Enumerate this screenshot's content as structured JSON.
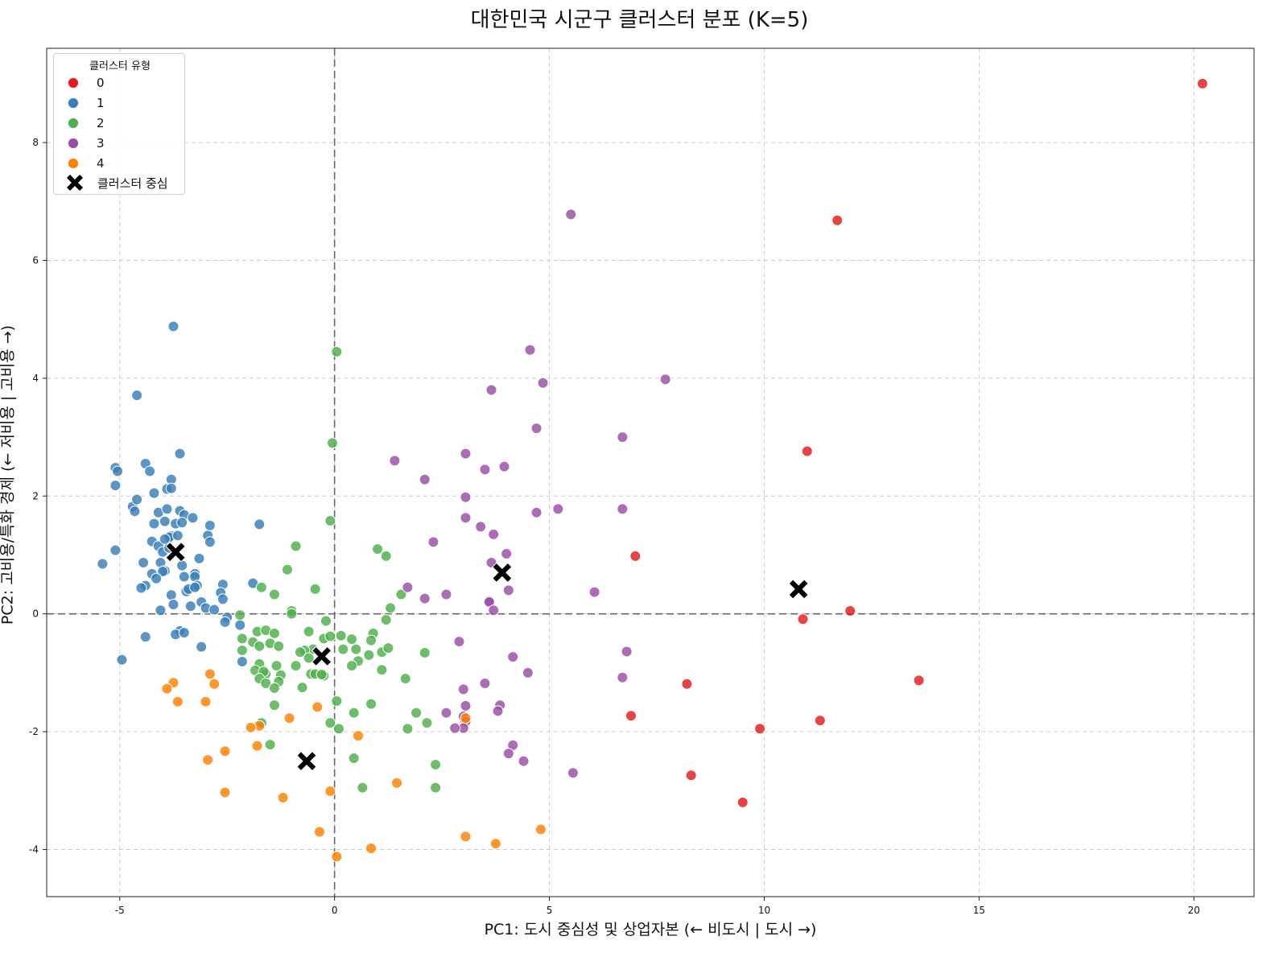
{
  "chart_data": {
    "type": "scatter",
    "title": "대한민국 시군구 클러스터 분포 (K=5)",
    "xlabel": "PC1: 도시 중심성 및 상업자본 (← 비도시 | 도시 →)",
    "ylabel": "PC2: 고비용/특화 경제 (← 저비용 | 고비용 →)",
    "xlim": [
      -6.7,
      21.4
    ],
    "ylim": [
      -4.8,
      9.6
    ],
    "xticks": [
      -5,
      0,
      5,
      10,
      15,
      20
    ],
    "yticks": [
      -4,
      -2,
      0,
      2,
      4,
      6,
      8
    ],
    "grid": true,
    "reference_lines": {
      "x": 0,
      "y": 0
    },
    "legend": {
      "title": "클러스터 유형",
      "position": "top-left",
      "centroid_label": "클러스터 중심"
    },
    "colors": {
      "0": "#e41a1c",
      "1": "#377eb8",
      "2": "#4daf4a",
      "3": "#984ea3",
      "4": "#ff7f00"
    },
    "series": [
      {
        "name": "0",
        "points": [
          [
            20.2,
            9.0
          ],
          [
            11.7,
            6.68
          ],
          [
            11.0,
            2.76
          ],
          [
            7.0,
            0.98
          ],
          [
            12.0,
            0.05
          ],
          [
            10.9,
            -0.09
          ],
          [
            13.6,
            -1.13
          ],
          [
            8.2,
            -1.19
          ],
          [
            6.9,
            -1.73
          ],
          [
            11.3,
            -1.81
          ],
          [
            9.9,
            -1.95
          ],
          [
            8.3,
            -2.74
          ],
          [
            9.5,
            -3.2
          ]
        ]
      },
      {
        "name": "1",
        "points": [
          [
            -3.75,
            4.88
          ],
          [
            -4.6,
            3.71
          ],
          [
            -3.6,
            2.72
          ],
          [
            -5.1,
            2.48
          ],
          [
            -5.05,
            2.42
          ],
          [
            -5.1,
            2.18
          ],
          [
            -4.4,
            2.55
          ],
          [
            -4.3,
            2.42
          ],
          [
            -4.2,
            2.05
          ],
          [
            -3.8,
            2.28
          ],
          [
            -3.9,
            2.12
          ],
          [
            -3.8,
            2.13
          ],
          [
            -4.7,
            1.82
          ],
          [
            -4.6,
            1.94
          ],
          [
            -4.65,
            1.74
          ],
          [
            -4.1,
            1.72
          ],
          [
            -3.9,
            1.78
          ],
          [
            -3.95,
            1.57
          ],
          [
            -3.7,
            1.53
          ],
          [
            -3.6,
            1.75
          ],
          [
            -3.5,
            1.68
          ],
          [
            -3.3,
            1.63
          ],
          [
            -3.55,
            1.55
          ],
          [
            -4.2,
            1.53
          ],
          [
            -2.9,
            1.5
          ],
          [
            -1.75,
            1.52
          ],
          [
            -2.95,
            1.33
          ],
          [
            -2.9,
            1.22
          ],
          [
            -3.8,
            1.32
          ],
          [
            -3.85,
            1.3
          ],
          [
            -3.65,
            1.33
          ],
          [
            -4.25,
            1.23
          ],
          [
            -4.1,
            1.15
          ],
          [
            -4.0,
            1.05
          ],
          [
            -3.85,
            1.12
          ],
          [
            -3.95,
            1.27
          ],
          [
            -5.1,
            1.08
          ],
          [
            -4.45,
            0.87
          ],
          [
            -4.05,
            0.87
          ],
          [
            -3.15,
            0.94
          ],
          [
            -5.4,
            0.85
          ],
          [
            -3.55,
            0.82
          ],
          [
            -4.25,
            0.68
          ],
          [
            -3.95,
            0.73
          ],
          [
            -4.0,
            0.72
          ],
          [
            -4.15,
            0.6
          ],
          [
            -3.25,
            0.68
          ],
          [
            -3.25,
            0.63
          ],
          [
            -3.5,
            0.63
          ],
          [
            -3.2,
            0.48
          ],
          [
            -4.4,
            0.48
          ],
          [
            -4.5,
            0.44
          ],
          [
            -3.45,
            0.38
          ],
          [
            -3.4,
            0.42
          ],
          [
            -3.25,
            0.45
          ],
          [
            -2.6,
            0.5
          ],
          [
            -1.9,
            0.52
          ],
          [
            -2.65,
            0.36
          ],
          [
            -3.8,
            0.32
          ],
          [
            -2.6,
            0.25
          ],
          [
            -3.1,
            0.2
          ],
          [
            -3.75,
            0.16
          ],
          [
            -3.35,
            0.13
          ],
          [
            -3.0,
            0.1
          ],
          [
            -4.05,
            0.06
          ],
          [
            -2.8,
            0.07
          ],
          [
            -2.5,
            -0.06
          ],
          [
            -2.55,
            -0.14
          ],
          [
            -2.2,
            -0.19
          ],
          [
            -3.6,
            -0.29
          ],
          [
            -3.7,
            -0.35
          ],
          [
            -3.5,
            -0.32
          ],
          [
            -4.4,
            -0.39
          ],
          [
            -3.1,
            -0.56
          ],
          [
            -4.95,
            -0.78
          ],
          [
            -2.15,
            -0.81
          ]
        ]
      },
      {
        "name": "2",
        "points": [
          [
            0.05,
            4.45
          ],
          [
            -0.05,
            2.9
          ],
          [
            -0.1,
            1.58
          ],
          [
            1.0,
            1.1
          ],
          [
            -0.9,
            1.15
          ],
          [
            1.2,
            0.98
          ],
          [
            -1.1,
            0.75
          ],
          [
            -0.45,
            0.42
          ],
          [
            -1.7,
            0.45
          ],
          [
            -1.4,
            0.33
          ],
          [
            1.55,
            0.33
          ],
          [
            1.3,
            0.1
          ],
          [
            -1.0,
            0.05
          ],
          [
            -1.0,
            0.0
          ],
          [
            -2.2,
            -0.02
          ],
          [
            1.2,
            -0.1
          ],
          [
            -0.2,
            -0.12
          ],
          [
            -1.8,
            -0.3
          ],
          [
            -1.6,
            -0.28
          ],
          [
            -1.4,
            -0.33
          ],
          [
            0.15,
            -0.37
          ],
          [
            0.4,
            -0.43
          ],
          [
            0.9,
            -0.33
          ],
          [
            0.85,
            -0.45
          ],
          [
            -0.6,
            -0.3
          ],
          [
            -0.25,
            -0.42
          ],
          [
            -0.1,
            -0.38
          ],
          [
            -2.15,
            -0.42
          ],
          [
            -1.9,
            -0.48
          ],
          [
            -1.5,
            -0.5
          ],
          [
            -1.75,
            -0.55
          ],
          [
            -1.3,
            -0.55
          ],
          [
            -0.5,
            -0.6
          ],
          [
            -0.7,
            -0.62
          ],
          [
            0.2,
            -0.6
          ],
          [
            0.5,
            -0.6
          ],
          [
            0.8,
            -0.7
          ],
          [
            1.1,
            -0.65
          ],
          [
            1.25,
            -0.58
          ],
          [
            2.1,
            -0.66
          ],
          [
            -2.15,
            -0.62
          ],
          [
            -0.8,
            -0.65
          ],
          [
            -0.6,
            -0.75
          ],
          [
            0.55,
            -0.8
          ],
          [
            -1.75,
            -0.85
          ],
          [
            -1.35,
            -0.88
          ],
          [
            -0.9,
            -0.88
          ],
          [
            -0.55,
            -1.02
          ],
          [
            -0.25,
            -1.05
          ],
          [
            0.4,
            -0.88
          ],
          [
            1.1,
            -0.95
          ],
          [
            -1.85,
            -0.96
          ],
          [
            -1.6,
            -1.02
          ],
          [
            -1.65,
            -0.98
          ],
          [
            -1.25,
            -1.04
          ],
          [
            -0.45,
            -1.02
          ],
          [
            -0.3,
            -1.03
          ],
          [
            -1.75,
            -1.1
          ],
          [
            -1.6,
            -1.18
          ],
          [
            -1.3,
            -1.15
          ],
          [
            -1.4,
            -1.26
          ],
          [
            -0.75,
            -1.25
          ],
          [
            1.65,
            -1.1
          ],
          [
            0.05,
            -1.48
          ],
          [
            -1.4,
            -1.55
          ],
          [
            0.85,
            -1.53
          ],
          [
            0.45,
            -1.68
          ],
          [
            1.9,
            -1.68
          ],
          [
            -1.7,
            -1.85
          ],
          [
            -0.1,
            -1.85
          ],
          [
            0.1,
            -1.95
          ],
          [
            1.7,
            -1.95
          ],
          [
            2.15,
            -1.85
          ],
          [
            -1.5,
            -2.22
          ],
          [
            0.45,
            -2.45
          ],
          [
            2.35,
            -2.56
          ],
          [
            0.65,
            -2.95
          ],
          [
            2.35,
            -2.95
          ]
        ]
      },
      {
        "name": "3",
        "points": [
          [
            5.5,
            6.78
          ],
          [
            4.55,
            4.48
          ],
          [
            7.7,
            3.98
          ],
          [
            4.85,
            3.92
          ],
          [
            3.65,
            3.8
          ],
          [
            4.7,
            3.15
          ],
          [
            6.7,
            3.0
          ],
          [
            3.05,
            2.72
          ],
          [
            1.4,
            2.6
          ],
          [
            3.95,
            2.5
          ],
          [
            3.5,
            2.45
          ],
          [
            2.1,
            2.28
          ],
          [
            3.05,
            1.98
          ],
          [
            5.2,
            1.78
          ],
          [
            6.7,
            1.78
          ],
          [
            4.7,
            1.72
          ],
          [
            3.05,
            1.63
          ],
          [
            3.4,
            1.48
          ],
          [
            3.7,
            1.35
          ],
          [
            2.3,
            1.22
          ],
          [
            4.0,
            1.02
          ],
          [
            3.65,
            0.87
          ],
          [
            1.7,
            0.45
          ],
          [
            4.05,
            0.4
          ],
          [
            6.05,
            0.37
          ],
          [
            2.6,
            0.33
          ],
          [
            2.1,
            0.26
          ],
          [
            3.6,
            0.22
          ],
          [
            3.6,
            0.2
          ],
          [
            3.7,
            0.06
          ],
          [
            2.9,
            -0.47
          ],
          [
            6.8,
            -0.64
          ],
          [
            4.15,
            -0.73
          ],
          [
            4.5,
            -1.0
          ],
          [
            6.7,
            -1.08
          ],
          [
            3.5,
            -1.18
          ],
          [
            3.0,
            -1.28
          ],
          [
            3.85,
            -1.55
          ],
          [
            3.05,
            -1.56
          ],
          [
            3.8,
            -1.65
          ],
          [
            2.6,
            -1.68
          ],
          [
            3.0,
            -1.74
          ],
          [
            3.05,
            -1.83
          ],
          [
            3.0,
            -1.94
          ],
          [
            2.8,
            -1.94
          ],
          [
            4.15,
            -2.23
          ],
          [
            4.05,
            -2.37
          ],
          [
            4.4,
            -2.5
          ],
          [
            5.55,
            -2.7
          ]
        ]
      },
      {
        "name": "4",
        "points": [
          [
            -2.9,
            -1.02
          ],
          [
            -2.8,
            -1.19
          ],
          [
            -3.75,
            -1.17
          ],
          [
            -3.9,
            -1.27
          ],
          [
            -3.65,
            -1.49
          ],
          [
            -3.0,
            -1.49
          ],
          [
            -0.4,
            -1.58
          ],
          [
            -1.05,
            -1.77
          ],
          [
            -1.75,
            -1.9
          ],
          [
            -1.95,
            -1.93
          ],
          [
            0.55,
            -2.07
          ],
          [
            -1.8,
            -2.24
          ],
          [
            -2.55,
            -2.33
          ],
          [
            -2.95,
            -2.48
          ],
          [
            1.45,
            -2.87
          ],
          [
            -2.55,
            -3.03
          ],
          [
            -0.1,
            -3.01
          ],
          [
            -1.2,
            -3.12
          ],
          [
            4.8,
            -3.66
          ],
          [
            -0.35,
            -3.7
          ],
          [
            3.05,
            -3.78
          ],
          [
            3.75,
            -3.9
          ],
          [
            0.85,
            -3.98
          ],
          [
            0.05,
            -4.12
          ],
          [
            3.05,
            -1.77
          ]
        ]
      }
    ],
    "centroids": [
      [
        10.8,
        0.42
      ],
      [
        -3.7,
        1.05
      ],
      [
        -0.3,
        -0.72
      ],
      [
        3.9,
        0.7
      ],
      [
        -0.65,
        -2.5
      ]
    ]
  }
}
